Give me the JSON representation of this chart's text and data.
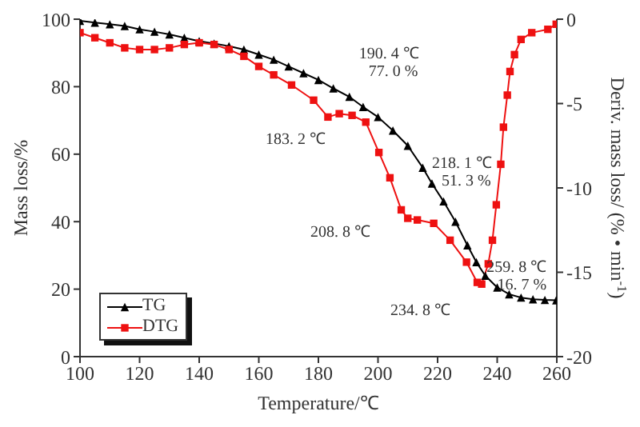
{
  "chart_data": {
    "type": "line",
    "xlabel": "Temperature/℃",
    "ylabel": "Mass loss/%",
    "y2label": "Deriv. mass loss/ (% • min$^{-1}$)",
    "xlim": [
      100,
      260
    ],
    "xticks": [
      100,
      120,
      140,
      160,
      180,
      200,
      220,
      240,
      260
    ],
    "ylim": [
      0,
      100
    ],
    "yticks": [
      0,
      20,
      40,
      60,
      80,
      100
    ],
    "y2lim": [
      -20,
      0
    ],
    "y2ticks": [
      -20,
      -15,
      -10,
      -5,
      0
    ],
    "legend": "bottom left",
    "grid": false,
    "series": [
      {
        "name": "TG",
        "color": "#000000",
        "marker": "triangle",
        "x": [
          100,
          105,
          110,
          115,
          120,
          125,
          130,
          135,
          140,
          145,
          150,
          155,
          160,
          165,
          170,
          175,
          180,
          185,
          190.4,
          195,
          200,
          205,
          210,
          215,
          218.1,
          222,
          226,
          230,
          233,
          236,
          240,
          244,
          248,
          252,
          256,
          259.8
        ],
        "values": [
          99.5,
          99,
          98.5,
          98,
          97,
          96.3,
          95.5,
          94.5,
          93.5,
          92.8,
          92,
          91,
          89.5,
          88,
          86,
          84,
          82,
          79.5,
          77,
          74,
          71,
          67,
          62.5,
          56,
          51.3,
          46,
          40,
          33,
          28,
          24,
          20.5,
          18.5,
          17.5,
          17,
          16.8,
          16.7
        ]
      },
      {
        "name": "DTG",
        "color": "#ee1111",
        "marker": "square",
        "axis": "y2",
        "x": [
          100,
          105,
          110,
          115,
          120,
          125,
          130,
          135,
          140,
          145,
          150,
          155,
          160,
          165,
          171,
          178.4,
          183.2,
          187,
          191.3,
          195.9,
          200.3,
          204,
          207.8,
          210,
          213.2,
          218.7,
          224.2,
          229.7,
          233.3,
          234.8,
          237,
          238.4,
          239.7,
          241.2,
          242.1,
          243.4,
          244.3,
          245.8,
          248,
          251.6,
          257,
          259.8
        ],
        "values": [
          -0.8,
          -1.1,
          -1.4,
          -1.7,
          -1.8,
          -1.8,
          -1.7,
          -1.5,
          -1.4,
          -1.5,
          -1.8,
          -2.2,
          -2.8,
          -3.3,
          -3.9,
          -4.8,
          -5.8,
          -5.6,
          -5.7,
          -6.1,
          -7.9,
          -9.4,
          -11.3,
          -11.8,
          -11.9,
          -12.1,
          -13.1,
          -14.4,
          -15.6,
          -15.7,
          -14.5,
          -13.1,
          -11,
          -8.6,
          -6.4,
          -4.5,
          -3.1,
          -2.1,
          -1.2,
          -0.8,
          -0.6,
          -0.3
        ]
      }
    ],
    "annotations": [
      {
        "text": "190. 4 ℃\n77. 0 %",
        "x": 190.4,
        "y": 77
      },
      "183. 2 ℃",
      {
        "text": "218. 1 ℃\n51. 3 %",
        "x": 218.1,
        "y": 51.3
      },
      "208. 8 ℃",
      {
        "text": "259. 8 ℃\n16. 7 %",
        "x": 259.8,
        "y": 16.7
      },
      "234. 8 ℃"
    ]
  }
}
